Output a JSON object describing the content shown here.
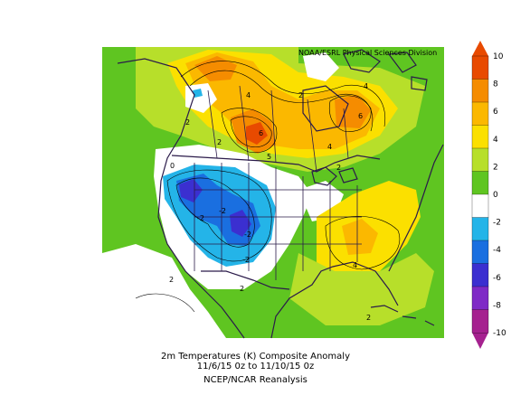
{
  "header": {
    "credit": "NOAA/ESRL Physical Sciences Division"
  },
  "caption": {
    "line1": "2m Temperatures (K)    Composite Anomaly",
    "line2": "11/6/15 0z  to 11/10/15 0z",
    "line3": "NCEP/NCAR Reanalysis"
  },
  "colorbar": {
    "tick_labels": [
      "10",
      "8",
      "6",
      "4",
      "2",
      "0",
      "-2",
      "-4",
      "-6",
      "-8",
      "-10"
    ],
    "colors": [
      "#e84a00",
      "#f58c00",
      "#fbb800",
      "#fbe000",
      "#b7df2a",
      "#5fc521",
      "#ffffff",
      "#24b4e8",
      "#1a6fe0",
      "#3b2fd0",
      "#7f2ac6",
      "#a5218f"
    ]
  },
  "map": {
    "contour_labels": [
      "4",
      "2",
      "4",
      "6",
      "2",
      "6",
      "4",
      "2",
      "5",
      "2",
      "-2",
      "-2",
      "-2",
      "-2",
      "2",
      "2",
      "4",
      "2",
      "0"
    ]
  }
}
